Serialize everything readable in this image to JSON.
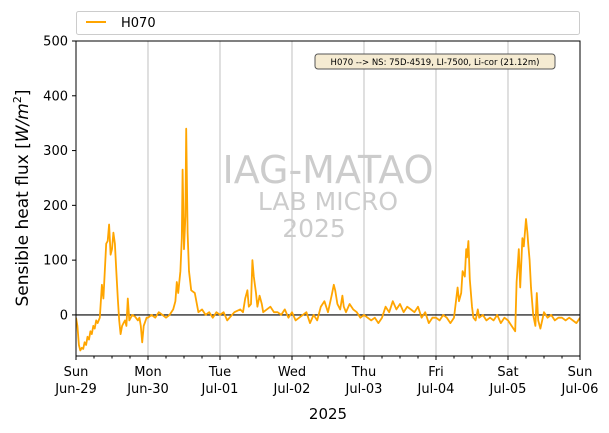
{
  "chart_data": {
    "type": "line",
    "xlabel": "2025",
    "ylabel_main": "Sensible heat flux [",
    "ylabel_unit_w": "W",
    "ylabel_unit_m": "/m",
    "ylabel_unit_exp": "2",
    "ylabel_close": "]",
    "ylim": [
      -75,
      500
    ],
    "yticks": [
      0,
      100,
      200,
      300,
      400,
      500
    ],
    "xlim_days": [
      0,
      7
    ],
    "grid": "vertical at day boundaries",
    "zero_line": true,
    "legend_placement": "top, above plot",
    "annotation": "H070 --> NS: 75D-4519, LI-7500, Li-cor (21.12m)",
    "watermark": [
      "IAG-MATAO",
      "LAB MICRO",
      "2025"
    ],
    "xtick_labels": [
      {
        "day": "Sun",
        "date": "Jun-29"
      },
      {
        "day": "Mon",
        "date": "Jun-30"
      },
      {
        "day": "Tue",
        "date": "Jul-01"
      },
      {
        "day": "Wed",
        "date": "Jul-02"
      },
      {
        "day": "Thu",
        "date": "Jul-03"
      },
      {
        "day": "Fri",
        "date": "Jul-04"
      },
      {
        "day": "Sat",
        "date": "Jul-05"
      },
      {
        "day": "Sun",
        "date": "Jul-06"
      }
    ],
    "series": [
      {
        "name": "H070",
        "color": "#FFA500",
        "points": [
          [
            0.0,
            -5
          ],
          [
            0.02,
            -20
          ],
          [
            0.04,
            -55
          ],
          [
            0.06,
            -65
          ],
          [
            0.08,
            -60
          ],
          [
            0.1,
            -62
          ],
          [
            0.12,
            -50
          ],
          [
            0.14,
            -55
          ],
          [
            0.16,
            -40
          ],
          [
            0.18,
            -45
          ],
          [
            0.2,
            -30
          ],
          [
            0.22,
            -35
          ],
          [
            0.24,
            -20
          ],
          [
            0.26,
            -25
          ],
          [
            0.28,
            -10
          ],
          [
            0.3,
            -15
          ],
          [
            0.33,
            -5
          ],
          [
            0.36,
            55
          ],
          [
            0.38,
            30
          ],
          [
            0.4,
            80
          ],
          [
            0.42,
            130
          ],
          [
            0.44,
            135
          ],
          [
            0.46,
            165
          ],
          [
            0.48,
            110
          ],
          [
            0.5,
            120
          ],
          [
            0.52,
            150
          ],
          [
            0.54,
            130
          ],
          [
            0.56,
            80
          ],
          [
            0.58,
            30
          ],
          [
            0.6,
            -10
          ],
          [
            0.62,
            -35
          ],
          [
            0.64,
            -20
          ],
          [
            0.66,
            -15
          ],
          [
            0.68,
            -10
          ],
          [
            0.7,
            -20
          ],
          [
            0.72,
            30
          ],
          [
            0.74,
            -10
          ],
          [
            0.78,
            0
          ],
          [
            0.82,
            -3
          ],
          [
            0.86,
            -10
          ],
          [
            0.88,
            -5
          ],
          [
            0.9,
            -20
          ],
          [
            0.92,
            -50
          ],
          [
            0.94,
            -20
          ],
          [
            0.98,
            -5
          ],
          [
            1.0,
            -5
          ],
          [
            1.05,
            0
          ],
          [
            1.1,
            -5
          ],
          [
            1.15,
            5
          ],
          [
            1.2,
            0
          ],
          [
            1.25,
            -5
          ],
          [
            1.3,
            0
          ],
          [
            1.35,
            10
          ],
          [
            1.38,
            25
          ],
          [
            1.4,
            60
          ],
          [
            1.42,
            40
          ],
          [
            1.45,
            80
          ],
          [
            1.47,
            140
          ],
          [
            1.48,
            265
          ],
          [
            1.5,
            120
          ],
          [
            1.52,
            180
          ],
          [
            1.53,
            340
          ],
          [
            1.55,
            150
          ],
          [
            1.57,
            80
          ],
          [
            1.6,
            45
          ],
          [
            1.65,
            40
          ],
          [
            1.7,
            5
          ],
          [
            1.75,
            10
          ],
          [
            1.8,
            0
          ],
          [
            1.85,
            5
          ],
          [
            1.9,
            -5
          ],
          [
            1.95,
            5
          ],
          [
            2.0,
            0
          ],
          [
            2.05,
            5
          ],
          [
            2.1,
            -10
          ],
          [
            2.2,
            5
          ],
          [
            2.28,
            10
          ],
          [
            2.32,
            5
          ],
          [
            2.35,
            30
          ],
          [
            2.38,
            45
          ],
          [
            2.4,
            15
          ],
          [
            2.43,
            20
          ],
          [
            2.45,
            100
          ],
          [
            2.47,
            70
          ],
          [
            2.5,
            40
          ],
          [
            2.52,
            15
          ],
          [
            2.55,
            35
          ],
          [
            2.58,
            20
          ],
          [
            2.6,
            5
          ],
          [
            2.65,
            10
          ],
          [
            2.7,
            15
          ],
          [
            2.75,
            5
          ],
          [
            2.8,
            5
          ],
          [
            2.85,
            0
          ],
          [
            2.9,
            10
          ],
          [
            2.95,
            -5
          ],
          [
            3.0,
            5
          ],
          [
            3.05,
            -10
          ],
          [
            3.1,
            -5
          ],
          [
            3.15,
            0
          ],
          [
            3.2,
            5
          ],
          [
            3.25,
            -15
          ],
          [
            3.3,
            0
          ],
          [
            3.35,
            -10
          ],
          [
            3.4,
            15
          ],
          [
            3.45,
            25
          ],
          [
            3.5,
            5
          ],
          [
            3.55,
            35
          ],
          [
            3.58,
            55
          ],
          [
            3.6,
            45
          ],
          [
            3.63,
            20
          ],
          [
            3.67,
            10
          ],
          [
            3.7,
            35
          ],
          [
            3.72,
            15
          ],
          [
            3.75,
            5
          ],
          [
            3.8,
            20
          ],
          [
            3.85,
            10
          ],
          [
            3.9,
            5
          ],
          [
            3.95,
            -5
          ],
          [
            4.0,
            0
          ],
          [
            4.05,
            -5
          ],
          [
            4.1,
            -10
          ],
          [
            4.15,
            -5
          ],
          [
            4.2,
            -15
          ],
          [
            4.25,
            -5
          ],
          [
            4.3,
            15
          ],
          [
            4.35,
            5
          ],
          [
            4.4,
            25
          ],
          [
            4.45,
            10
          ],
          [
            4.5,
            20
          ],
          [
            4.55,
            5
          ],
          [
            4.6,
            15
          ],
          [
            4.65,
            10
          ],
          [
            4.7,
            5
          ],
          [
            4.75,
            15
          ],
          [
            4.8,
            -5
          ],
          [
            4.85,
            5
          ],
          [
            4.9,
            -15
          ],
          [
            4.95,
            -5
          ],
          [
            5.0,
            -5
          ],
          [
            5.05,
            -10
          ],
          [
            5.1,
            0
          ],
          [
            5.15,
            -5
          ],
          [
            5.2,
            -15
          ],
          [
            5.25,
            -5
          ],
          [
            5.3,
            50
          ],
          [
            5.32,
            25
          ],
          [
            5.35,
            40
          ],
          [
            5.37,
            80
          ],
          [
            5.4,
            70
          ],
          [
            5.42,
            120
          ],
          [
            5.43,
            105
          ],
          [
            5.45,
            135
          ],
          [
            5.47,
            65
          ],
          [
            5.5,
            15
          ],
          [
            5.52,
            -5
          ],
          [
            5.55,
            -10
          ],
          [
            5.58,
            10
          ],
          [
            5.6,
            -5
          ],
          [
            5.65,
            0
          ],
          [
            5.7,
            -10
          ],
          [
            5.75,
            -5
          ],
          [
            5.8,
            -10
          ],
          [
            5.85,
            0
          ],
          [
            5.9,
            -15
          ],
          [
            5.95,
            -5
          ],
          [
            6.0,
            -10
          ],
          [
            6.05,
            -20
          ],
          [
            6.1,
            -30
          ],
          [
            6.12,
            60
          ],
          [
            6.15,
            120
          ],
          [
            6.17,
            50
          ],
          [
            6.2,
            140
          ],
          [
            6.22,
            125
          ],
          [
            6.25,
            175
          ],
          [
            6.27,
            150
          ],
          [
            6.28,
            130
          ],
          [
            6.3,
            100
          ],
          [
            6.32,
            50
          ],
          [
            6.35,
            0
          ],
          [
            6.38,
            -20
          ],
          [
            6.4,
            40
          ],
          [
            6.42,
            -10
          ],
          [
            6.45,
            -25
          ],
          [
            6.5,
            5
          ],
          [
            6.55,
            -5
          ],
          [
            6.6,
            0
          ],
          [
            6.65,
            -10
          ],
          [
            6.7,
            -5
          ],
          [
            6.75,
            -5
          ],
          [
            6.8,
            -10
          ],
          [
            6.85,
            -5
          ],
          [
            6.9,
            -10
          ],
          [
            6.95,
            -15
          ],
          [
            7.0,
            -5
          ]
        ]
      }
    ]
  }
}
